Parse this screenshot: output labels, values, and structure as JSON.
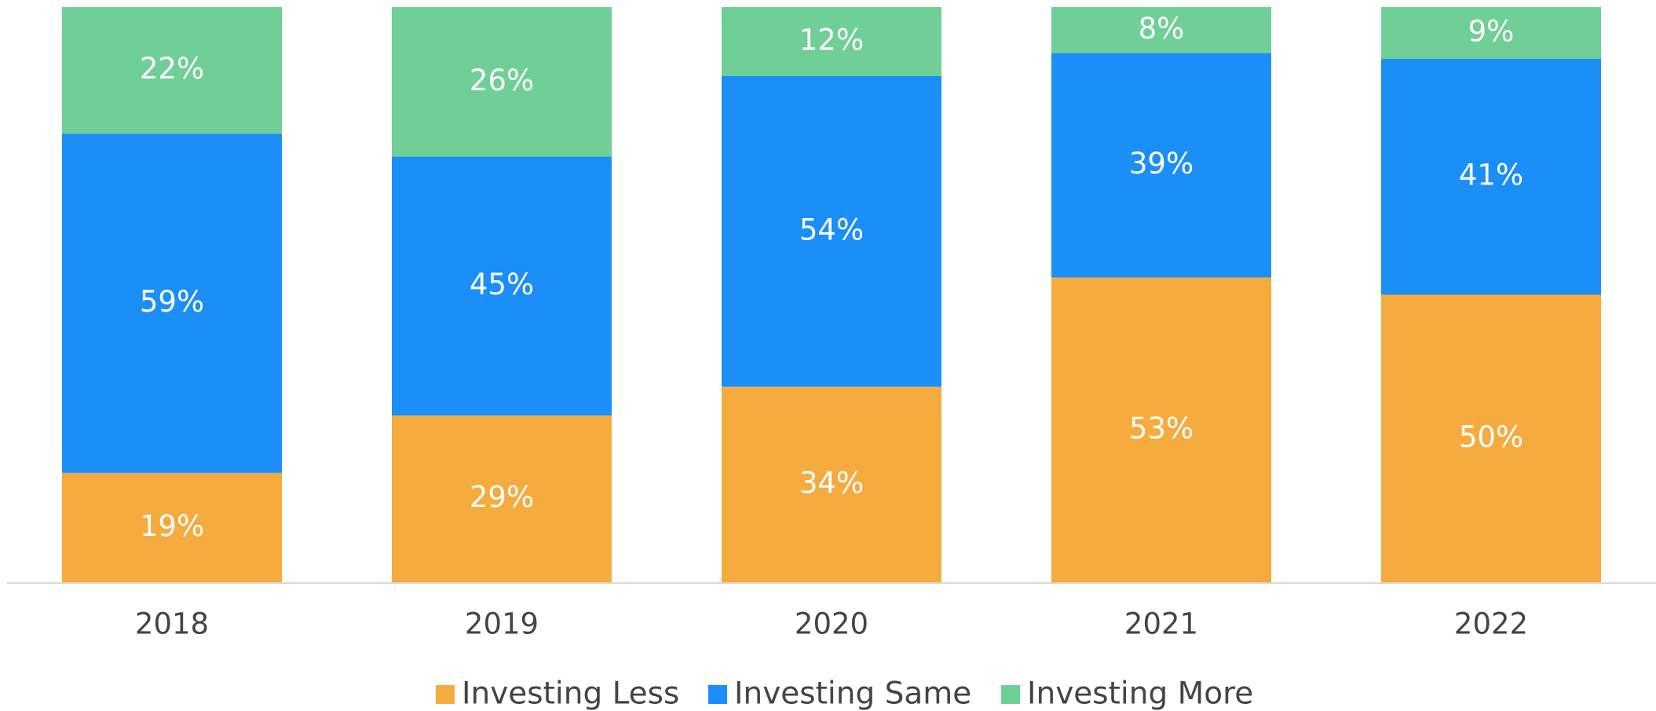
{
  "chart_data": {
    "type": "stacked_bar",
    "categories": [
      "2018",
      "2019",
      "2020",
      "2021",
      "2022"
    ],
    "series": [
      {
        "name": "Investing Less",
        "color": "#f5ab3d",
        "values": [
          19,
          29,
          34,
          53,
          50
        ],
        "value_labels": [
          "19%",
          "29%",
          "34%",
          "53%",
          "50%"
        ]
      },
      {
        "name": "Investing Same",
        "color": "#1b8ef8",
        "values": [
          59,
          45,
          54,
          39,
          41
        ],
        "value_labels": [
          "59%",
          "45%",
          "54%",
          "39%",
          "41%"
        ]
      },
      {
        "name": "Investing More",
        "color": "#6fcf97",
        "values": [
          22,
          26,
          12,
          8,
          9
        ],
        "value_labels": [
          "22%",
          "26%",
          "12%",
          "8%",
          "9%"
        ]
      }
    ],
    "ylim": [
      0,
      100
    ],
    "legend": "bottom"
  }
}
